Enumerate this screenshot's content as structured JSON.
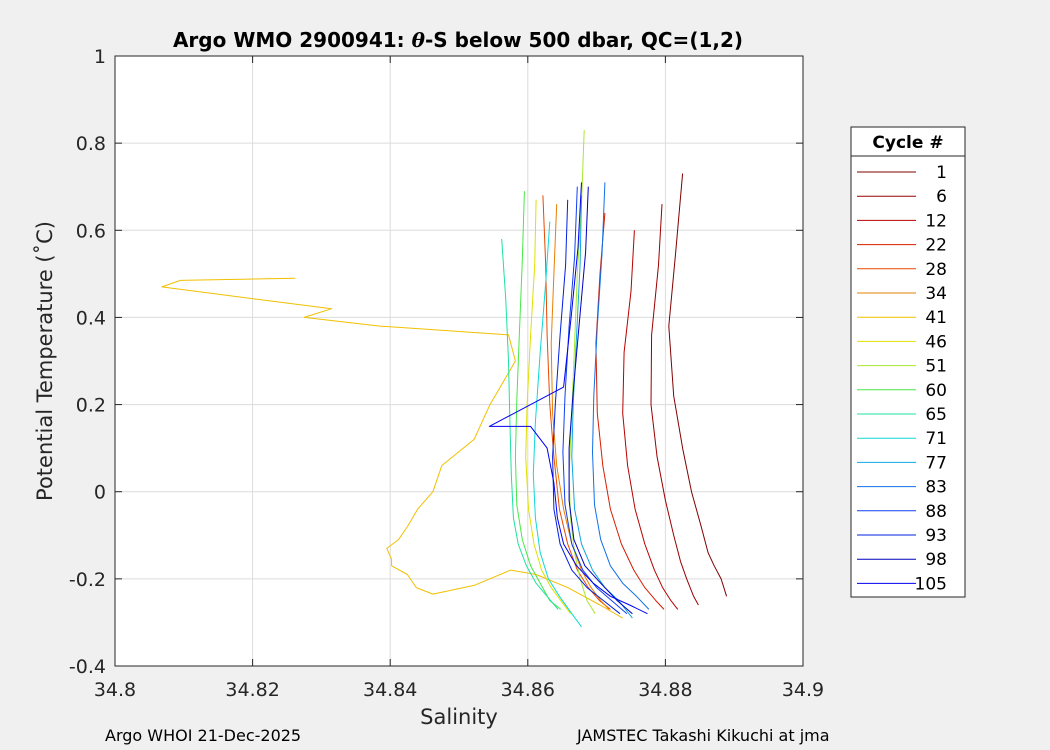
{
  "chart_data": {
    "type": "line",
    "title": "Argo WMO 2900941: θ-S below 500 dbar,  QC=(1,2)",
    "title_parts": {
      "prefix": "Argo WMO 2900941: ",
      "symbol": "θ",
      "suffix": "-S below 500 dbar,  QC=(1,2)"
    },
    "xlabel": "Salinity",
    "ylabel": "Potential Temperature (˚C)",
    "xlim": [
      34.8,
      34.9
    ],
    "ylim": [
      -0.4,
      1.0
    ],
    "x_ticks": [
      34.8,
      34.82,
      34.84,
      34.86,
      34.88,
      34.9
    ],
    "x_tick_labels": [
      "34.8",
      "34.82",
      "34.84",
      "34.86",
      "34.88",
      "34.9"
    ],
    "y_ticks": [
      -0.4,
      -0.2,
      0,
      0.2,
      0.4,
      0.6,
      0.8,
      1.0
    ],
    "y_tick_labels": [
      "-0.4",
      "-0.2",
      "0",
      "0.2",
      "0.4",
      "0.6",
      "0.8",
      "1"
    ],
    "grid": true,
    "legend": {
      "title": "Cycle #",
      "placement": "outside right",
      "entries": [
        {
          "label": "1",
          "color": "#800000"
        },
        {
          "label": "6",
          "color": "#9a0000"
        },
        {
          "label": "12",
          "color": "#b80000"
        },
        {
          "label": "22",
          "color": "#d81c00"
        },
        {
          "label": "28",
          "color": "#e84800"
        },
        {
          "label": "34",
          "color": "#e88000"
        },
        {
          "label": "41",
          "color": "#f0c000"
        },
        {
          "label": "46",
          "color": "#e0e000"
        },
        {
          "label": "51",
          "color": "#a8e830"
        },
        {
          "label": "60",
          "color": "#48e848"
        },
        {
          "label": "65",
          "color": "#20e0a0"
        },
        {
          "label": "71",
          "color": "#10d8d8"
        },
        {
          "label": "77",
          "color": "#10a8e0"
        },
        {
          "label": "83",
          "color": "#1070e8"
        },
        {
          "label": "88",
          "color": "#1040f0"
        },
        {
          "label": "93",
          "color": "#0020e0"
        },
        {
          "label": "98",
          "color": "#0000c0"
        },
        {
          "label": "105",
          "color": "#0000f0"
        }
      ]
    },
    "series": [
      {
        "name": "1",
        "color": "#800000",
        "s": [
          34.8825,
          34.8815,
          34.8805,
          34.8812,
          34.8825,
          34.8838,
          34.8852,
          34.8862,
          34.8871,
          34.8881,
          34.8889
        ],
        "t": [
          0.73,
          0.55,
          0.38,
          0.22,
          0.1,
          0.0,
          -0.08,
          -0.14,
          -0.17,
          -0.2,
          -0.24
        ]
      },
      {
        "name": "6",
        "color": "#9a0000",
        "s": [
          34.8795,
          34.879,
          34.878,
          34.8779,
          34.8788,
          34.88,
          34.8812,
          34.8822,
          34.8831,
          34.8841,
          34.8848
        ],
        "t": [
          0.66,
          0.52,
          0.36,
          0.2,
          0.08,
          -0.02,
          -0.1,
          -0.16,
          -0.2,
          -0.24,
          -0.26
        ]
      },
      {
        "name": "12",
        "color": "#b80000",
        "s": [
          34.8755,
          34.875,
          34.874,
          34.8738,
          34.8745,
          34.8756,
          34.877,
          34.8784,
          34.8796,
          34.8808,
          34.8818
        ],
        "t": [
          0.6,
          0.46,
          0.32,
          0.18,
          0.06,
          -0.04,
          -0.12,
          -0.18,
          -0.22,
          -0.25,
          -0.27
        ]
      },
      {
        "name": "22",
        "color": "#d81c00",
        "s": [
          34.8712,
          34.8705,
          34.8699,
          34.8701,
          34.8709,
          34.872,
          34.8736,
          34.8754,
          34.877,
          34.8786,
          34.8798
        ],
        "t": [
          0.64,
          0.5,
          0.34,
          0.18,
          0.06,
          -0.04,
          -0.12,
          -0.18,
          -0.22,
          -0.25,
          -0.27
        ]
      },
      {
        "name": "28",
        "color": "#e84800",
        "s": [
          34.8622,
          34.8626,
          34.8628,
          34.8632,
          34.8638,
          34.8646,
          34.8658,
          34.8672,
          34.8688,
          34.8704,
          34.872
        ],
        "t": [
          0.68,
          0.52,
          0.36,
          0.2,
          0.08,
          -0.04,
          -0.12,
          -0.18,
          -0.22,
          -0.25,
          -0.27
        ]
      },
      {
        "name": "34",
        "color": "#e88000",
        "s": [
          34.8642,
          34.8638,
          34.8634,
          34.8636,
          34.8642,
          34.8652,
          34.8664,
          34.8678,
          34.8692,
          34.8706,
          34.8718
        ],
        "t": [
          0.66,
          0.5,
          0.34,
          0.18,
          0.06,
          -0.04,
          -0.12,
          -0.18,
          -0.22,
          -0.25,
          -0.27
        ]
      },
      {
        "name": "41",
        "color": "#f0c000",
        "s": [
          34.8262,
          34.8095,
          34.8068,
          34.8215,
          34.8315,
          34.8275,
          34.8385,
          34.8572,
          34.8582,
          34.8545,
          34.8522,
          34.8475,
          34.8462,
          34.844,
          34.8425,
          34.8412,
          34.8395,
          34.8402,
          34.8402,
          34.8425,
          34.8438,
          34.8462,
          34.8522,
          34.8575,
          34.8612,
          34.8658,
          34.8705,
          34.8738
        ],
        "t": [
          0.49,
          0.485,
          0.47,
          0.44,
          0.42,
          0.4,
          0.38,
          0.36,
          0.3,
          0.2,
          0.12,
          0.06,
          0.0,
          -0.04,
          -0.08,
          -0.11,
          -0.13,
          -0.155,
          -0.17,
          -0.19,
          -0.22,
          -0.235,
          -0.215,
          -0.18,
          -0.19,
          -0.22,
          -0.26,
          -0.29
        ]
      },
      {
        "name": "46",
        "color": "#e0e000",
        "s": [
          34.8612,
          34.861,
          34.8604,
          34.8599,
          34.8597,
          34.8601,
          34.8609,
          34.862,
          34.8634,
          34.8648,
          34.8662
        ],
        "t": [
          0.67,
          0.52,
          0.36,
          0.2,
          0.08,
          -0.04,
          -0.12,
          -0.18,
          -0.22,
          -0.25,
          -0.28
        ]
      },
      {
        "name": "51",
        "color": "#a8e830",
        "s": [
          34.8682,
          34.8678,
          34.8672,
          34.8668,
          34.8664,
          34.866,
          34.8662,
          34.8668,
          34.8676,
          34.8686,
          34.8698
        ],
        "t": [
          0.83,
          0.66,
          0.5,
          0.34,
          0.18,
          0.04,
          -0.06,
          -0.14,
          -0.2,
          -0.25,
          -0.28
        ]
      },
      {
        "name": "60",
        "color": "#48e848",
        "s": [
          34.8595,
          34.8592,
          34.8588,
          34.8584,
          34.8582,
          34.8584,
          34.8592,
          34.8604,
          34.8618,
          34.8632,
          34.8648
        ],
        "t": [
          0.69,
          0.53,
          0.37,
          0.21,
          0.08,
          -0.03,
          -0.11,
          -0.17,
          -0.21,
          -0.25,
          -0.27
        ]
      },
      {
        "name": "65",
        "color": "#20e0a0",
        "s": [
          34.8562,
          34.8568,
          34.8572,
          34.8574,
          34.8576,
          34.8579,
          34.8586,
          34.8598,
          34.8612,
          34.8628,
          34.8644
        ],
        "t": [
          0.58,
          0.44,
          0.3,
          0.16,
          0.04,
          -0.06,
          -0.12,
          -0.17,
          -0.21,
          -0.24,
          -0.27
        ]
      },
      {
        "name": "71",
        "color": "#10d8d8",
        "s": [
          34.8632,
          34.8626,
          34.8618,
          34.8611,
          34.8608,
          34.8611,
          34.8618,
          34.863,
          34.8646,
          34.8664,
          34.8678
        ],
        "t": [
          0.62,
          0.48,
          0.32,
          0.16,
          0.04,
          -0.06,
          -0.14,
          -0.2,
          -0.24,
          -0.28,
          -0.31
        ]
      },
      {
        "name": "77",
        "color": "#10a8e0",
        "s": [
          34.8678,
          34.8676,
          34.8671,
          34.8666,
          34.8664,
          34.8668,
          34.8678,
          34.8694,
          34.8712,
          34.8732,
          34.8752
        ],
        "t": [
          0.68,
          0.52,
          0.36,
          0.2,
          0.08,
          -0.04,
          -0.12,
          -0.18,
          -0.22,
          -0.25,
          -0.29
        ]
      },
      {
        "name": "83",
        "color": "#1070e8",
        "s": [
          34.8712,
          34.8708,
          34.8701,
          34.8696,
          34.8694,
          34.8697,
          34.8706,
          34.872,
          34.8738,
          34.8758,
          34.8776
        ],
        "t": [
          0.71,
          0.55,
          0.38,
          0.22,
          0.09,
          -0.03,
          -0.11,
          -0.17,
          -0.21,
          -0.24,
          -0.27
        ]
      },
      {
        "name": "88",
        "color": "#1040f0",
        "s": [
          34.8672,
          34.8668,
          34.866,
          34.8654,
          34.8651,
          34.8654,
          34.8664,
          34.868,
          34.87,
          34.8722,
          34.8744
        ],
        "t": [
          0.7,
          0.54,
          0.38,
          0.22,
          0.09,
          -0.03,
          -0.12,
          -0.18,
          -0.22,
          -0.25,
          -0.28
        ]
      },
      {
        "name": "93",
        "color": "#0020e0",
        "s": [
          34.8658,
          34.8655,
          34.8647,
          34.864,
          34.8636,
          34.8638,
          34.8647,
          34.8664,
          34.8686,
          34.871,
          34.8734
        ],
        "t": [
          0.67,
          0.52,
          0.36,
          0.2,
          0.08,
          -0.04,
          -0.12,
          -0.18,
          -0.22,
          -0.25,
          -0.28
        ]
      },
      {
        "name": "98",
        "color": "#0000c0",
        "s": [
          34.8688,
          34.8684,
          34.8675,
          34.8666,
          34.866,
          34.866,
          34.8667,
          34.8683,
          34.8706,
          34.873,
          34.8752
        ],
        "t": [
          0.7,
          0.55,
          0.39,
          0.23,
          0.1,
          -0.02,
          -0.11,
          -0.17,
          -0.21,
          -0.25,
          -0.28
        ]
      },
      {
        "name": "105",
        "color": "#0000f0",
        "s": [
          34.8678,
          34.8673,
          34.8663,
          34.8652,
          34.8544,
          34.8604,
          34.8628,
          34.8638,
          34.8643,
          34.8652,
          34.8671,
          34.8695,
          34.872,
          34.8748,
          34.8774
        ],
        "t": [
          0.71,
          0.56,
          0.4,
          0.24,
          0.15,
          0.15,
          0.1,
          0.02,
          -0.06,
          -0.12,
          -0.17,
          -0.21,
          -0.24,
          -0.26,
          -0.28
        ]
      }
    ]
  },
  "footer": {
    "left": "Argo WHOI 21-Dec-2025",
    "right": "JAMSTEC Takashi Kikuchi at jma"
  }
}
